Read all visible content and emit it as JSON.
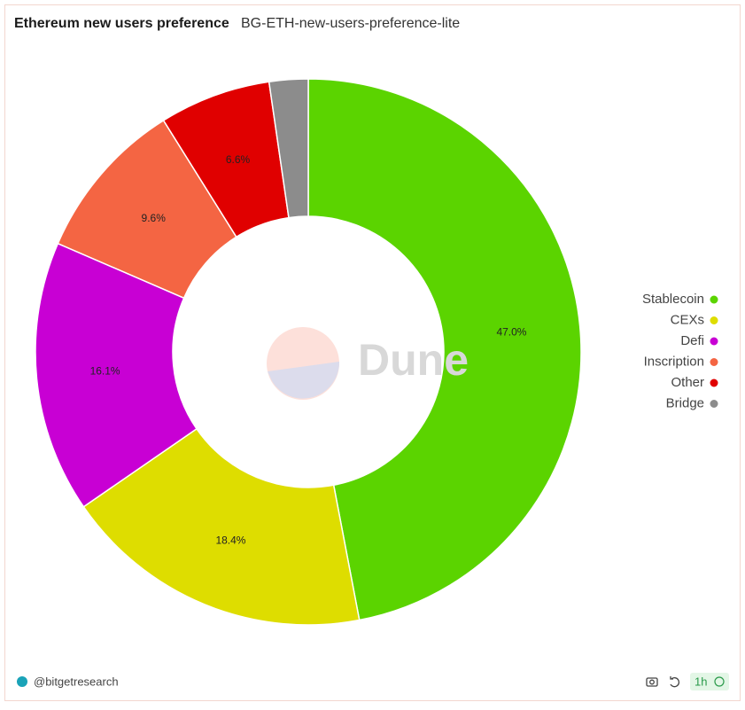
{
  "chart_data": {
    "type": "pie",
    "title": "Ethereum new users preference",
    "subtitle": "BG-ETH-new-users-preference-lite",
    "watermark": "Dune",
    "footer": "@bitgetresearch",
    "refresh": "1h",
    "categories": [
      "Stablecoin",
      "CEXs",
      "Defi",
      "Inscription",
      "Other",
      "Bridge"
    ],
    "values": [
      47.0,
      18.4,
      16.1,
      9.6,
      6.6,
      2.3
    ],
    "value_labels": [
      "47.0%",
      "18.4%",
      "16.1%",
      "9.6%",
      "6.6%",
      null
    ],
    "colors": [
      "#5bd400",
      "#dedd00",
      "#c800d4",
      "#f46543",
      "#e00000",
      "#8c8c8c"
    ],
    "legend": "right"
  }
}
